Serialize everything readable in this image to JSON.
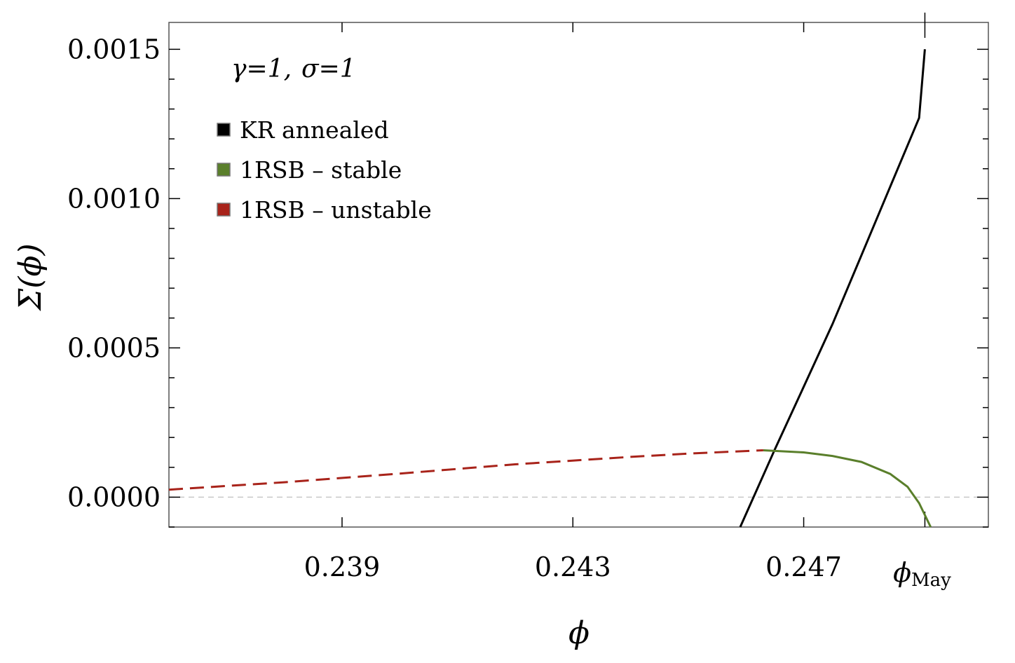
{
  "chart_data": {
    "type": "line",
    "title": "",
    "xlabel": "ϕ",
    "ylabel": "Σ(ϕ)",
    "xlim": [
      0.236,
      0.2502
    ],
    "ylim": [
      -0.0001,
      0.00159
    ],
    "x_ticks": [
      {
        "value": 0.239,
        "label": "0.239"
      },
      {
        "value": 0.243,
        "label": "0.243"
      },
      {
        "value": 0.247,
        "label": "0.247"
      },
      {
        "value": 0.2491,
        "label_main": "ϕ",
        "label_sub": "May"
      }
    ],
    "y_ticks": [
      {
        "value": 0.0,
        "label": "0.0000"
      },
      {
        "value": 0.0005,
        "label": "0.0005"
      },
      {
        "value": 0.001,
        "label": "0.0010"
      },
      {
        "value": 0.0015,
        "label": "0.0015"
      }
    ],
    "annotation": {
      "gamma_label": "γ=1,",
      "sigma_label": "σ=1"
    },
    "zero_line": true,
    "grid": false,
    "legend_position": "top-left",
    "series": [
      {
        "name": "KR annealed",
        "color": "#000000",
        "style": "solid",
        "x": [
          0.2459,
          0.2465,
          0.247,
          0.2475,
          0.248,
          0.2485,
          0.249,
          0.2491
        ],
        "y": [
          -0.0001,
          0.00016,
          0.00037,
          0.00058,
          0.00081,
          0.00104,
          0.00127,
          0.0015
        ]
      },
      {
        "name": "1RSB – stable",
        "color": "#5a7f2b",
        "style": "solid",
        "x": [
          0.2463,
          0.247,
          0.2475,
          0.248,
          0.2485,
          0.2488,
          0.249,
          0.2492
        ],
        "y": [
          0.000157,
          0.00015,
          0.000138,
          0.000118,
          7.8e-05,
          3.5e-05,
          -2e-05,
          -0.0001
        ]
      },
      {
        "name": "1RSB – unstable",
        "color": "#a8231a",
        "style": "dashed",
        "x": [
          0.236,
          0.238,
          0.24,
          0.242,
          0.244,
          0.245,
          0.2463
        ],
        "y": [
          2.5e-05,
          5e-05,
          7.9e-05,
          0.00011,
          0.000135,
          0.000146,
          0.000157
        ]
      }
    ]
  }
}
